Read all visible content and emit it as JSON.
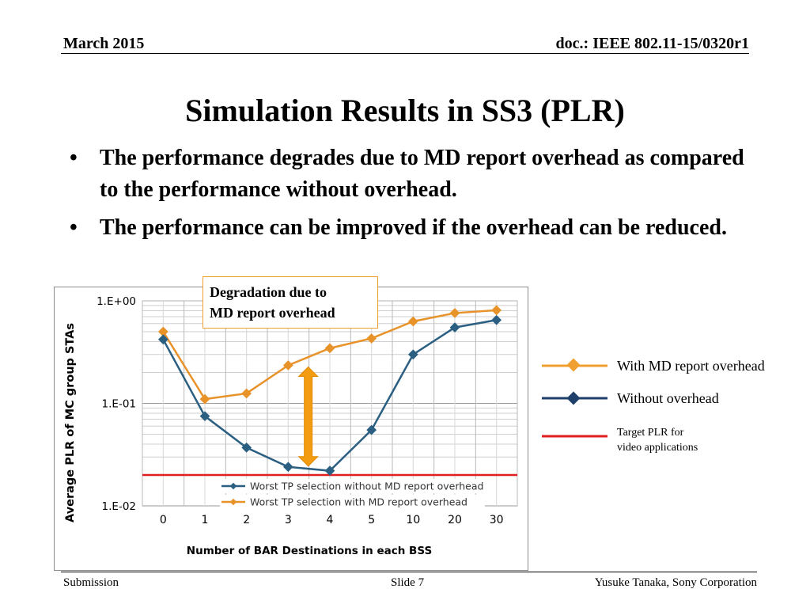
{
  "header": {
    "date": "March 2015",
    "doc": "doc.: IEEE 802.11-15/0320r1"
  },
  "title": "Simulation Results in SS3 (PLR)",
  "bullets": [
    "The performance degrades due to MD report overhead as compared to the performance without overhead.",
    "The performance can be improved if the overhead can be reduced."
  ],
  "callout": {
    "line1": "Degradation due to",
    "line2": "MD report overhead"
  },
  "legend": {
    "with_overhead": "With MD report overhead",
    "without_overhead": "Without overhead",
    "target_line1": "Target PLR for",
    "target_line2": "video applications"
  },
  "chart_data": {
    "type": "line",
    "categories": [
      "0",
      "1",
      "2",
      "3",
      "4",
      "5",
      "10",
      "20",
      "30"
    ],
    "series": [
      {
        "name": "Worst TP selection without MD report overhead",
        "values": [
          0.42,
          0.075,
          0.037,
          0.024,
          0.022,
          0.055,
          0.3,
          0.55,
          0.65
        ]
      },
      {
        "name": "Worst TP selection with MD report overhead",
        "values": [
          0.5,
          0.11,
          0.125,
          0.235,
          0.345,
          0.43,
          0.63,
          0.76,
          0.81
        ]
      }
    ],
    "target_plr": 0.02,
    "ylabel": "Average PLR of MC group STAs",
    "xlabel": "Number of BAR Destinations in each BSS",
    "yscale": "log",
    "ylim": [
      0.01,
      1
    ],
    "ytick_labels": [
      "1.E+00",
      "1.E-01",
      "1.E-02"
    ],
    "grid": true,
    "legend_position": "bottom-center",
    "colors": {
      "without": "#2b5f82",
      "with": "#e8922a",
      "target": "#e02020",
      "arrow": "#f39c12"
    }
  },
  "footer": {
    "left": "Submission",
    "center": "Slide 7",
    "right": "Yusuke Tanaka, Sony Corporation"
  }
}
